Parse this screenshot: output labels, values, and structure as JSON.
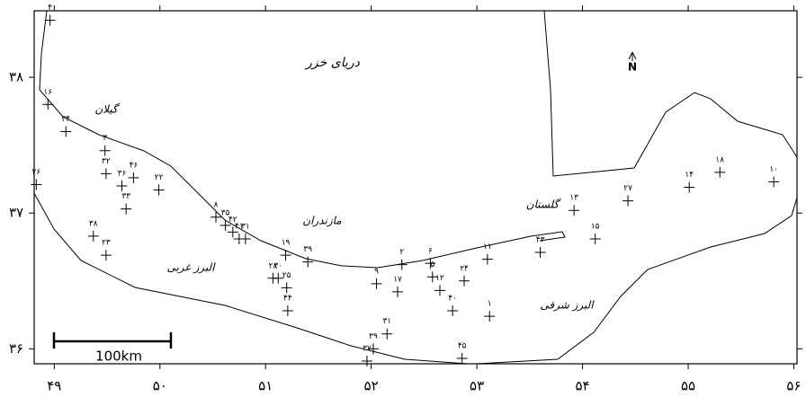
{
  "chart_data": {
    "type": "scatter",
    "xlim": [
      48.81,
      56.03
    ],
    "ylim": [
      35.89,
      38.49
    ],
    "xticks": [
      {
        "value": 49,
        "label": "۴۹"
      },
      {
        "value": 50,
        "label": "۵۰"
      },
      {
        "value": 51,
        "label": "۵۱"
      },
      {
        "value": 52,
        "label": "۵۲"
      },
      {
        "value": 53,
        "label": "۵۳"
      },
      {
        "value": 54,
        "label": "۵۴"
      },
      {
        "value": 55,
        "label": "۵۵"
      },
      {
        "value": 56,
        "label": "۵۶"
      }
    ],
    "yticks": [
      {
        "value": 36,
        "label": "۳۶"
      },
      {
        "value": 37,
        "label": "۳۷"
      },
      {
        "value": 38,
        "label": "۳۸"
      }
    ],
    "x": [
      48.94,
      49.11,
      49.48,
      49.49,
      49.75,
      49.99,
      49.64,
      49.68,
      48.83,
      49.37,
      49.49,
      50.53,
      50.62,
      50.69,
      50.75,
      50.81,
      51.19,
      51.4,
      51.07,
      51.12,
      51.2,
      51.21,
      52.29,
      52.58,
      52.56,
      52.05,
      52.25,
      52.65,
      52.88,
      52.77,
      53.1,
      53.6,
      53.92,
      54.12,
      54.43,
      55.01,
      55.3,
      55.81,
      53.12,
      52.15,
      52.02,
      51.96,
      52.86,
      48.96
    ],
    "series": [
      {
        "color": "#000000",
        "values": [
          37.8,
          37.6,
          37.46,
          37.29,
          37.26,
          37.17,
          37.2,
          37.03,
          37.21,
          36.83,
          36.69,
          36.97,
          36.91,
          36.86,
          36.81,
          36.81,
          36.69,
          36.64,
          36.52,
          36.52,
          36.45,
          36.28,
          36.62,
          36.53,
          36.63,
          36.48,
          36.42,
          36.43,
          36.5,
          36.28,
          36.66,
          36.71,
          37.02,
          36.81,
          37.09,
          37.19,
          37.3,
          37.23,
          36.24,
          36.11,
          36.0,
          35.91,
          35.93,
          38.42
        ],
        "point_labels": [
          "۱۶",
          "۳۴",
          "۳",
          "۳۲",
          "۴۶",
          "۲۲",
          "۳۶",
          "۳۳",
          "۲۶",
          "۳۸",
          "۲۳",
          "۸",
          "۳۵",
          "۴۲",
          "۴۱",
          "۳۱",
          "۱۹",
          "۳۹",
          "۲۸",
          "۳۰",
          "۲۵",
          "۴۴",
          "۲",
          "۵",
          "۶",
          "۹",
          "۱۷",
          "۱۲",
          "۲۴",
          "۴۰",
          "۱۱",
          "۴۳",
          "۱۳",
          "۱۵",
          "۲۷",
          "۱۴",
          "۱۸",
          "۱۰",
          "۱",
          "۳۱",
          "۳۹",
          "۳۷",
          "۴۵",
          "۴"
        ]
      }
    ],
    "annotations": {
      "sea": "دریای خزر",
      "gilan": "گیلان",
      "mazandaran": "مازندران",
      "golestan": "گلستان",
      "west_alborz": "البرز غربی",
      "east_alborz": "البرز شرقی",
      "north": "N",
      "scale": "100km"
    }
  }
}
